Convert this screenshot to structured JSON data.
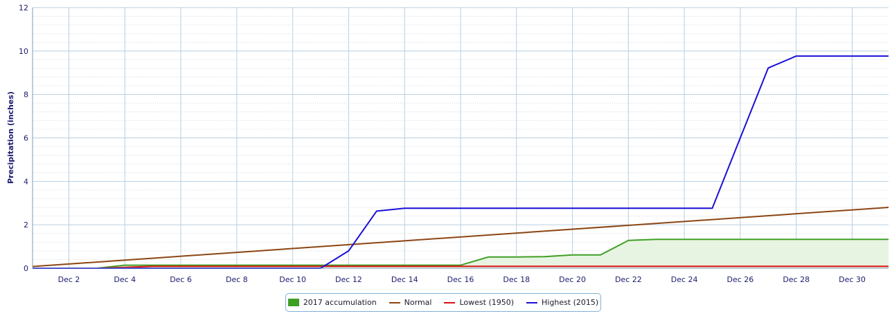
{
  "chart_data": {
    "type": "line",
    "ylabel": "Precipitation (inches)",
    "ylim": [
      0,
      12
    ],
    "yticks": [
      "0",
      "2",
      "4",
      "6",
      "8",
      "10",
      "12"
    ],
    "xlim": [
      0.7,
      31.3
    ],
    "xticks": [
      {
        "day": 2,
        "label": "Dec 2"
      },
      {
        "day": 4,
        "label": "Dec 4"
      },
      {
        "day": 6,
        "label": "Dec 6"
      },
      {
        "day": 8,
        "label": "Dec 8"
      },
      {
        "day": 10,
        "label": "Dec 10"
      },
      {
        "day": 12,
        "label": "Dec 12"
      },
      {
        "day": 14,
        "label": "Dec 14"
      },
      {
        "day": 16,
        "label": "Dec 16"
      },
      {
        "day": 18,
        "label": "Dec 18"
      },
      {
        "day": 20,
        "label": "Dec 20"
      },
      {
        "day": 22,
        "label": "Dec 22"
      },
      {
        "day": 24,
        "label": "Dec 24"
      },
      {
        "day": 26,
        "label": "Dec 26"
      },
      {
        "day": 28,
        "label": "Dec 28"
      },
      {
        "day": 30,
        "label": "Dec 30"
      }
    ],
    "grid": true,
    "legend_position": "bottom-center",
    "series": [
      {
        "name": "2017 accumulation",
        "color": "#3e9f25",
        "fill": "#e8f4e2",
        "style": "area",
        "x": [
          0.7,
          1,
          2,
          3,
          4,
          5,
          6,
          7,
          8,
          9,
          10,
          11,
          12,
          13,
          14,
          15,
          16,
          17,
          18,
          19,
          20,
          21,
          22,
          23,
          24,
          25,
          26,
          27,
          28,
          29,
          30,
          31,
          31.3
        ],
        "values": [
          0,
          0,
          0,
          0,
          0.14,
          0.14,
          0.14,
          0.14,
          0.14,
          0.14,
          0.14,
          0.14,
          0.14,
          0.14,
          0.14,
          0.14,
          0.14,
          0.52,
          0.52,
          0.53,
          0.61,
          0.61,
          1.28,
          1.33,
          1.33,
          1.33,
          1.33,
          1.33,
          1.33,
          1.33,
          1.33,
          1.33,
          1.33
        ]
      },
      {
        "name": "Normal",
        "color": "#8b4513",
        "style": "line",
        "x": [
          0.7,
          31.3
        ],
        "values": [
          0.08,
          2.8
        ]
      },
      {
        "name": "Lowest (1950)",
        "color": "#dd1111",
        "style": "line",
        "x": [
          0.7,
          1,
          2,
          3,
          4,
          5,
          6,
          7,
          8,
          9,
          10,
          11,
          12,
          13,
          14,
          15,
          16,
          17,
          18,
          19,
          20,
          21,
          22,
          23,
          24,
          25,
          26,
          27,
          28,
          29,
          30,
          31,
          31.3
        ],
        "values": [
          0,
          0,
          0,
          0,
          0.04,
          0.09,
          0.09,
          0.09,
          0.09,
          0.09,
          0.09,
          0.09,
          0.09,
          0.09,
          0.09,
          0.09,
          0.09,
          0.09,
          0.09,
          0.09,
          0.09,
          0.09,
          0.09,
          0.09,
          0.09,
          0.09,
          0.09,
          0.09,
          0.09,
          0.09,
          0.09,
          0.09,
          0.09
        ]
      },
      {
        "name": "Highest (2015)",
        "color": "#1a0fd6",
        "style": "line",
        "x": [
          0.7,
          1,
          2,
          3,
          4,
          5,
          6,
          7,
          8,
          9,
          10,
          11,
          12,
          13,
          14,
          15,
          16,
          17,
          18,
          19,
          20,
          21,
          22,
          23,
          24,
          25,
          26,
          27,
          28,
          29,
          30,
          31,
          31.3
        ],
        "values": [
          0,
          0,
          0,
          0,
          0,
          0,
          0,
          0,
          0,
          0,
          0,
          0,
          0.8,
          2.63,
          2.76,
          2.76,
          2.76,
          2.76,
          2.76,
          2.76,
          2.76,
          2.76,
          2.76,
          2.76,
          2.76,
          2.76,
          6.0,
          9.22,
          9.77,
          9.77,
          9.77,
          9.77,
          9.77
        ]
      }
    ]
  }
}
